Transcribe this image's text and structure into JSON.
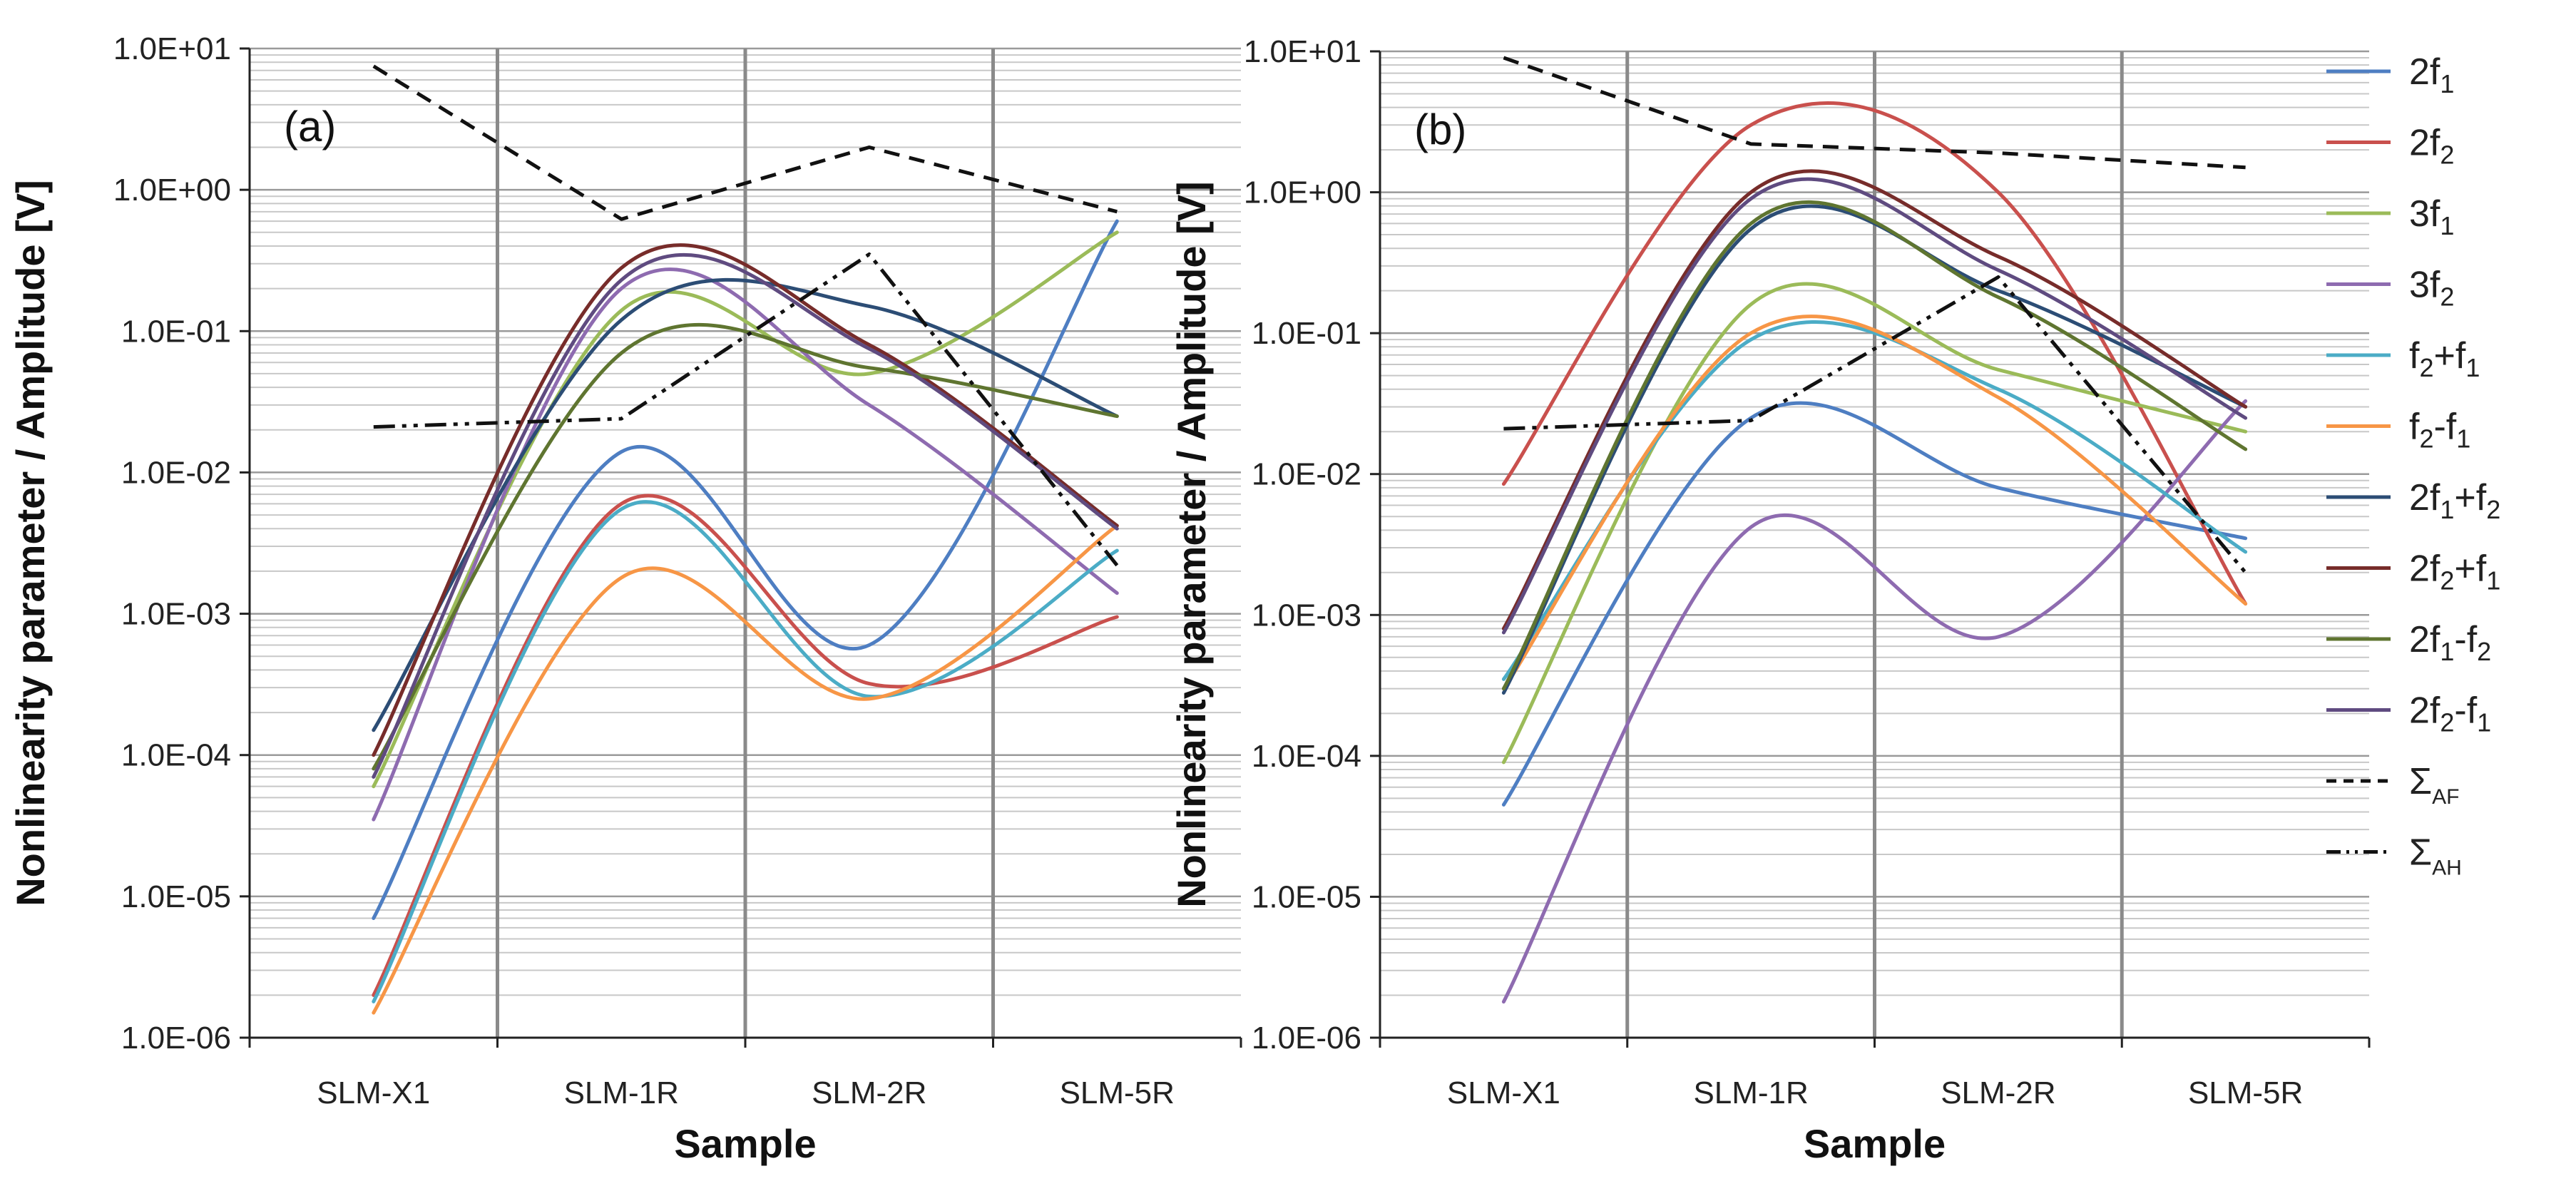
{
  "chart_data": [
    {
      "type": "line",
      "panel_label": "(a)",
      "xlabel": "Sample",
      "ylabel": "Nonlinearity parameter / Amplitude [V]",
      "yscale": "log",
      "ylim": [
        1e-06,
        10
      ],
      "ytick_labels": [
        "1.0E-06",
        "1.0E-05",
        "1.0E-04",
        "1.0E-03",
        "1.0E-02",
        "1.0E-01",
        "1.0E+00",
        "1.0E+01"
      ],
      "categories": [
        "SLM-X1",
        "SLM-1R",
        "SLM-2R",
        "SLM-5R"
      ],
      "grid": true,
      "series": [
        {
          "name": "2f1",
          "values": [
            7e-06,
            0.014,
            0.0006,
            0.6
          ]
        },
        {
          "name": "2f2",
          "values": [
            2e-06,
            0.006,
            0.00032,
            0.00095
          ]
        },
        {
          "name": "3f1",
          "values": [
            6e-05,
            0.14,
            0.05,
            0.5
          ]
        },
        {
          "name": "3f2",
          "values": [
            3.5e-05,
            0.2,
            0.03,
            0.0014
          ]
        },
        {
          "name": "f2+f1",
          "values": [
            1.8e-06,
            0.0055,
            0.00026,
            0.0028
          ]
        },
        {
          "name": "f2-f1",
          "values": [
            1.5e-06,
            0.0018,
            0.00025,
            0.0042
          ]
        },
        {
          "name": "2f1+f2",
          "values": [
            0.00015,
            0.12,
            0.15,
            0.025
          ]
        },
        {
          "name": "2f2+f1",
          "values": [
            0.0001,
            0.28,
            0.08,
            0.0042
          ]
        },
        {
          "name": "2f1-f2",
          "values": [
            8e-05,
            0.07,
            0.055,
            0.025
          ]
        },
        {
          "name": "2f2-f1",
          "values": [
            7e-05,
            0.23,
            0.075,
            0.004
          ]
        },
        {
          "name": "ΣAF",
          "values": [
            7.5,
            0.62,
            2.0,
            0.7
          ]
        },
        {
          "name": "ΣAH",
          "values": [
            0.021,
            0.024,
            0.35,
            0.0022
          ]
        }
      ]
    },
    {
      "type": "line",
      "panel_label": "(b)",
      "xlabel": "Sample",
      "ylabel": "Nonlinearity parameter / Amplitude [V]",
      "yscale": "log",
      "ylim": [
        1e-06,
        10
      ],
      "ytick_labels": [
        "1.0E-06",
        "1.0E-05",
        "1.0E-04",
        "1.0E-03",
        "1.0E-02",
        "1.0E-01",
        "1.0E+00",
        "1.0E+01"
      ],
      "categories": [
        "SLM-X1",
        "SLM-1R",
        "SLM-2R",
        "SLM-5R"
      ],
      "grid": true,
      "series": [
        {
          "name": "2f1",
          "values": [
            4.5e-05,
            0.025,
            0.008,
            0.0035
          ]
        },
        {
          "name": "2f2",
          "values": [
            0.0085,
            3.0,
            1.0,
            0.0012
          ]
        },
        {
          "name": "3f1",
          "values": [
            9e-05,
            0.16,
            0.055,
            0.02
          ]
        },
        {
          "name": "3f2",
          "values": [
            1.8e-06,
            0.0042,
            0.0007,
            0.033
          ]
        },
        {
          "name": "f2+f1",
          "values": [
            0.00035,
            0.09,
            0.04,
            0.0028
          ]
        },
        {
          "name": "f2-f1",
          "values": [
            0.0003,
            0.1,
            0.035,
            0.0012
          ]
        },
        {
          "name": "2f1+f2",
          "values": [
            0.00028,
            0.55,
            0.2,
            0.03
          ]
        },
        {
          "name": "2f2+f1",
          "values": [
            0.0008,
            1.0,
            0.35,
            0.03
          ]
        },
        {
          "name": "2f1-f2",
          "values": [
            0.0003,
            0.6,
            0.18,
            0.015
          ]
        },
        {
          "name": "2f2-f1",
          "values": [
            0.00075,
            0.9,
            0.28,
            0.025
          ]
        },
        {
          "name": "ΣAF",
          "values": [
            9.0,
            2.2,
            1.9,
            1.5
          ]
        },
        {
          "name": "ΣAH",
          "values": [
            0.021,
            0.024,
            0.25,
            0.002
          ]
        }
      ]
    }
  ],
  "legend": {
    "position": "right",
    "entries": [
      {
        "base": "2f",
        "sub": "1",
        "suffix": "",
        "color": "#4E7EC2",
        "dash": ""
      },
      {
        "base": "2f",
        "sub": "2",
        "suffix": "",
        "color": "#C9504D",
        "dash": ""
      },
      {
        "base": "3f",
        "sub": "1",
        "suffix": "",
        "color": "#9BBB59",
        "dash": ""
      },
      {
        "base": "3f",
        "sub": "2",
        "suffix": "",
        "color": "#8E6BB0",
        "dash": ""
      },
      {
        "base": "f",
        "sub": "2",
        "suffix": "+f",
        "sub2": "1",
        "color": "#4BACC6",
        "dash": ""
      },
      {
        "base": "f",
        "sub": "2",
        "suffix": "-f",
        "sub2": "1",
        "color": "#F79646",
        "dash": ""
      },
      {
        "base": "2f",
        "sub": "1",
        "suffix": "+f",
        "sub2": "2",
        "color": "#2C4D75",
        "dash": ""
      },
      {
        "base": "2f",
        "sub": "2",
        "suffix": "+f",
        "sub2": "1",
        "color": "#772C2A",
        "dash": ""
      },
      {
        "base": "2f",
        "sub": "1",
        "suffix": "-f",
        "sub2": "2",
        "color": "#5F7530",
        "dash": ""
      },
      {
        "base": "2f",
        "sub": "2",
        "suffix": "-f",
        "sub2": "1",
        "color": "#5F4B80",
        "dash": ""
      },
      {
        "base": "Σ",
        "sub": "AF",
        "suffix": "",
        "color": "#111111",
        "dash": "22,14"
      },
      {
        "base": "Σ",
        "sub": "AH",
        "suffix": "",
        "color": "#111111",
        "dash": "30,10,6,10,6,10"
      }
    ]
  }
}
